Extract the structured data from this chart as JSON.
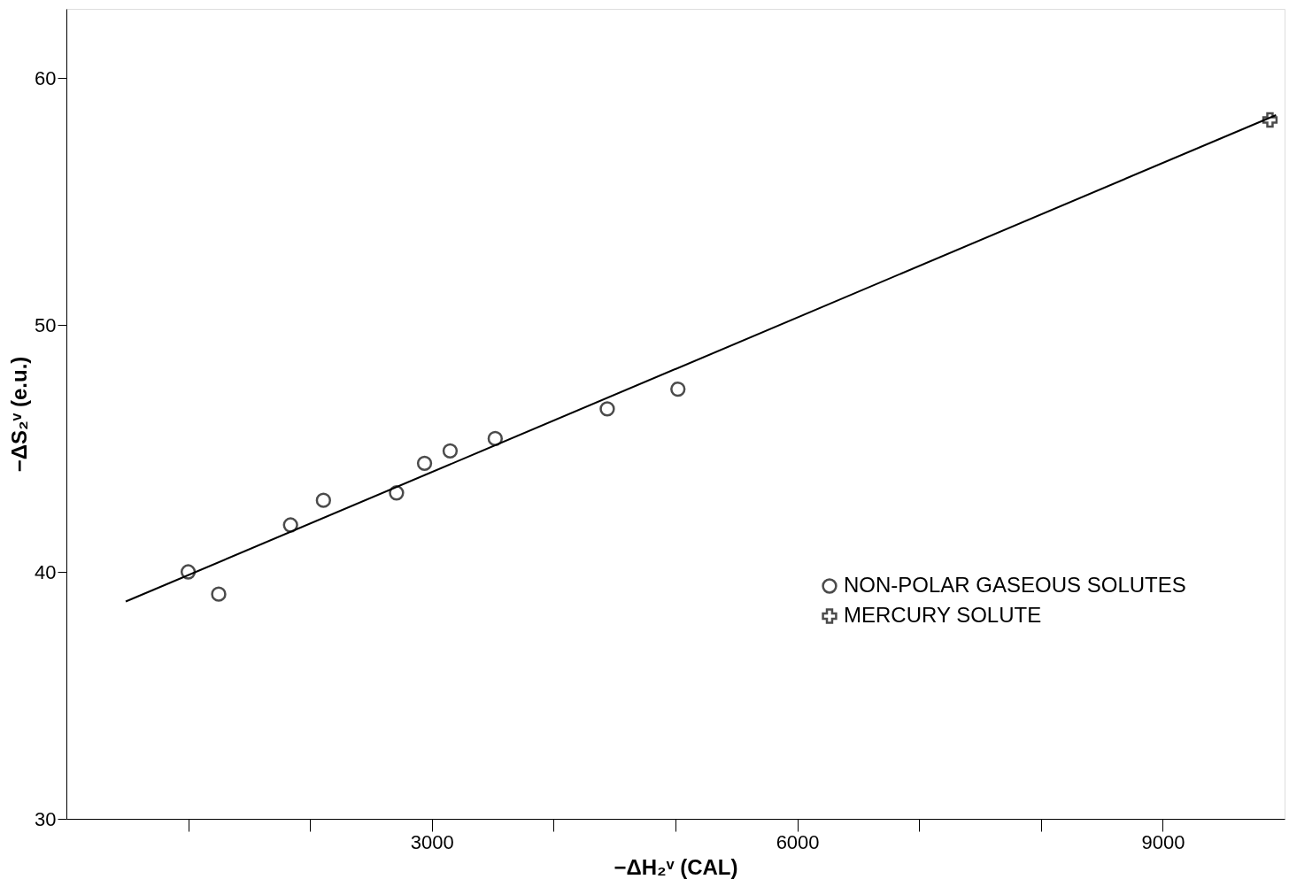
{
  "chart_data": {
    "type": "scatter",
    "xlabel": "−ΔH₂ᵛ (CAL)",
    "ylabel": "−ΔS₂ᵛ (e.u.)",
    "xlim": [
      0,
      10000
    ],
    "ylim": [
      30,
      62.8
    ],
    "xticks": [
      {
        "value": 1000,
        "label": null
      },
      {
        "value": 2000,
        "label": null
      },
      3000,
      {
        "value": 4000,
        "label": null
      },
      {
        "value": 5000,
        "label": null
      },
      6000,
      {
        "value": 7000,
        "label": null
      },
      {
        "value": 8000,
        "label": null
      },
      9000
    ],
    "yticks": [
      30,
      40,
      50,
      60
    ],
    "grid": false,
    "legend": "right",
    "series": [
      {
        "name": "NON-POLAR GASEOUS SOLUTES",
        "color": "#000000",
        "marker": "circle",
        "x": [
          1000,
          1250,
          1840,
          2110,
          2710,
          2940,
          3150,
          3520,
          4440,
          5020
        ],
        "values": [
          40.0,
          39.1,
          41.9,
          42.9,
          43.2,
          44.4,
          44.9,
          45.4,
          46.6,
          47.4
        ]
      },
      {
        "name": "MERCURY SOLUTE",
        "color": "#000000",
        "marker": "cross",
        "x": [
          9880
        ],
        "values": [
          58.3
        ]
      },
      {
        "type": "line",
        "color": "#000000",
        "marker": "none",
        "line_style": "solid",
        "x": [
          487,
          9930
        ],
        "values": [
          38.8,
          58.5
        ]
      }
    ]
  }
}
